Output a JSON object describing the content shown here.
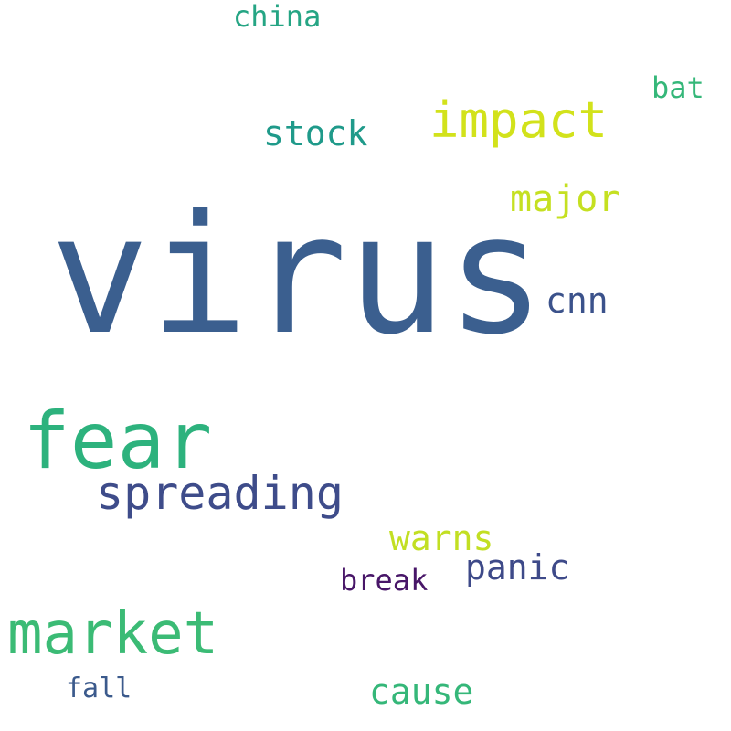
{
  "words": {
    "virus": {
      "text": "virus",
      "color": "#3b5f8f"
    },
    "fear": {
      "text": "fear",
      "color": "#2db27d"
    },
    "market": {
      "text": "market",
      "color": "#3bbb75"
    },
    "impact": {
      "text": "impact",
      "color": "#d2e21b"
    },
    "spreading": {
      "text": "spreading",
      "color": "#3e4c8a"
    },
    "major": {
      "text": "major",
      "color": "#c5e021"
    },
    "stock": {
      "text": "stock",
      "color": "#1f9a8a"
    },
    "cnn": {
      "text": "cnn",
      "color": "#3b528b"
    },
    "cause": {
      "text": "cause",
      "color": "#35b779"
    },
    "warns": {
      "text": "warns",
      "color": "#c2df23"
    },
    "panic": {
      "text": "panic",
      "color": "#3e4a89"
    },
    "china": {
      "text": "china",
      "color": "#25a584"
    },
    "break": {
      "text": "break",
      "color": "#481668"
    },
    "bat": {
      "text": "bat",
      "color": "#35b779"
    },
    "fall": {
      "text": "fall",
      "color": "#3b5a8c"
    }
  }
}
